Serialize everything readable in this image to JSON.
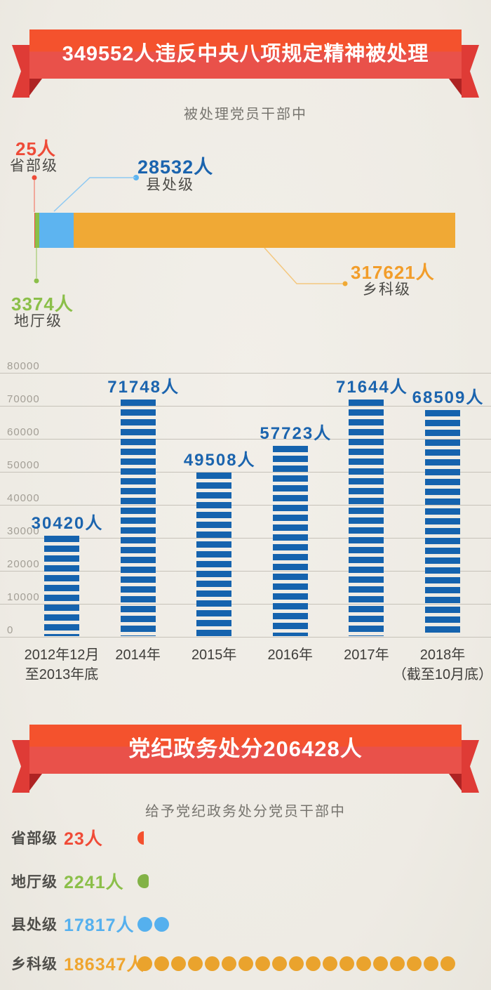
{
  "banner1": {
    "title": "349552人违反中央八项规定精神被处理"
  },
  "banner2": {
    "title": "党纪政务处分206428人"
  },
  "section1": {
    "subtitle": "被处理党员干部中",
    "callouts": [
      {
        "value": "25人",
        "label": "省部级",
        "color": "#ee4b38"
      },
      {
        "value": "28532人",
        "label": "县处级",
        "color": "#1b64ae"
      },
      {
        "value": "3374人",
        "label": "地厅级",
        "color": "#8bbf49"
      },
      {
        "value": "317621人",
        "label": "乡科级",
        "color": "#f29d2a"
      }
    ]
  },
  "section2": {
    "subtitle": "给予党纪政务处分党员干部中",
    "rows": [
      {
        "label": "省部级",
        "value": "23人",
        "number": 23,
        "value_color": "#f04b37",
        "dot_color": "#f4502e",
        "dots_full": 0,
        "partial": "sliver"
      },
      {
        "label": "地厅级",
        "value": "2241人",
        "number": 2241,
        "value_color": "#8bbf49",
        "dot_color": "#82b246",
        "dots_full": 0,
        "partial": "blob"
      },
      {
        "label": "县处级",
        "value": "17817人",
        "number": 17817,
        "value_color": "#55b0ee",
        "dot_color": "#55b0ee",
        "dots_full": 2,
        "partial": null
      },
      {
        "label": "乡科级",
        "value": "186347人",
        "number": 186347,
        "value_color": "#efa52f",
        "dot_color": "#eaa32d",
        "dots_full": 19,
        "partial": null
      }
    ]
  },
  "chart_data": [
    {
      "type": "bar",
      "subtype": "stacked-horizontal",
      "title": "被处理党员干部中",
      "unit": "人",
      "total": 349552,
      "segments": [
        {
          "label": "省部级",
          "value": 25,
          "color": "#ee4b38"
        },
        {
          "label": "地厅级",
          "value": 3374,
          "color": "#8bbf49"
        },
        {
          "label": "县处级",
          "value": 28532,
          "color": "#5db4f0"
        },
        {
          "label": "乡科级",
          "value": 317621,
          "color": "#f0a935"
        }
      ]
    },
    {
      "type": "bar",
      "unit": "人",
      "categories": [
        "2012年12月至2013年底",
        "2014年",
        "2015年",
        "2016年",
        "2017年",
        "2018年（截至10月底）"
      ],
      "x_label_lines": [
        [
          "2012年12月",
          "至2013年底"
        ],
        [
          "2014年"
        ],
        [
          "2015年"
        ],
        [
          "2016年"
        ],
        [
          "2017年"
        ],
        [
          "2018年",
          "（截至10月底）"
        ]
      ],
      "values": [
        30420,
        71748,
        49508,
        57723,
        71644,
        68509
      ],
      "value_labels": [
        "30420人",
        "71748人",
        "49508人",
        "57723人",
        "71644人",
        "68509人"
      ],
      "ylim": [
        0,
        80000
      ],
      "yticks": [
        0,
        10000,
        20000,
        30000,
        40000,
        50000,
        60000,
        70000,
        80000
      ],
      "grid": true,
      "bar_color": "#1563ae",
      "legend": null
    },
    {
      "type": "pictogram",
      "title": "给予党纪政务处分党员干部中",
      "unit": "人",
      "dot_unit": 10000,
      "total": 206428,
      "categories": [
        "省部级",
        "地厅级",
        "县处级",
        "乡科级"
      ],
      "values": [
        23,
        2241,
        17817,
        186347
      ]
    }
  ]
}
